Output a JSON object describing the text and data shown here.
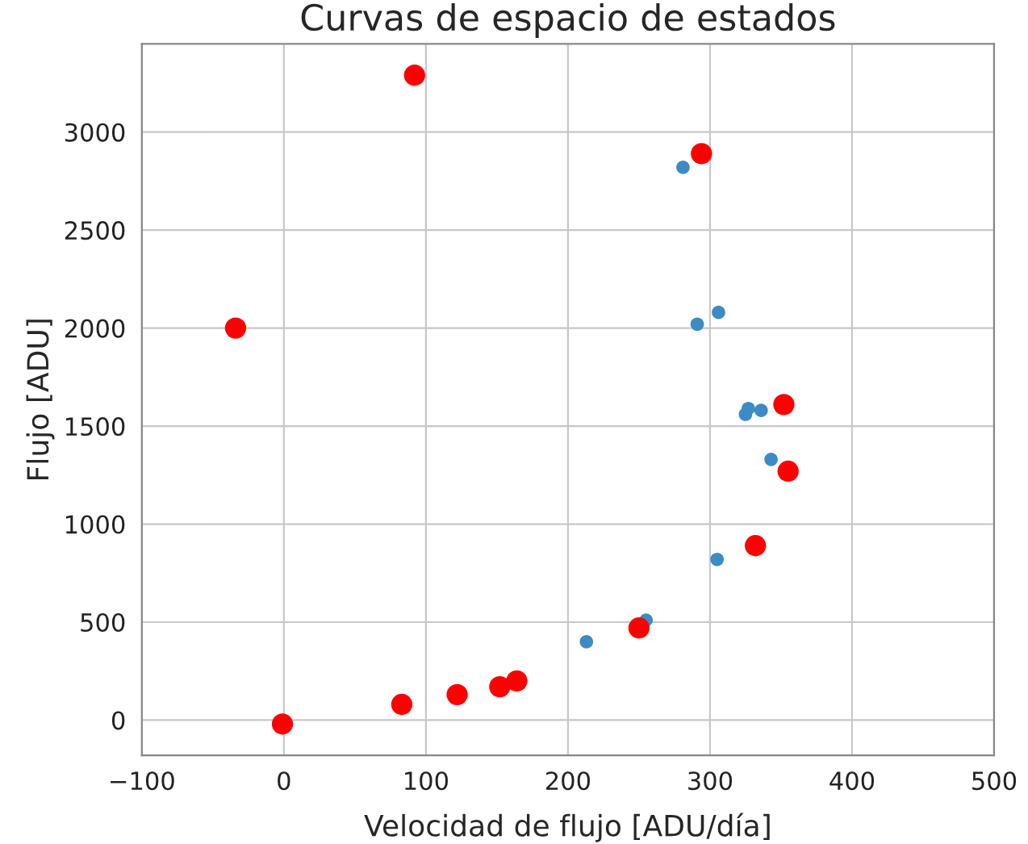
{
  "chart_data": {
    "type": "scatter",
    "title": "Curvas de espacio de estados",
    "xlabel": "Velocidad de flujo [ADU/día]",
    "ylabel": "Flujo [ADU]",
    "series": [
      {
        "color": "#3d8bc4",
        "x": [
          281,
          291,
          306,
          327,
          325,
          336,
          343,
          305,
          255,
          213
        ],
        "values": [
          2820,
          2020,
          2080,
          1590,
          1560,
          1580,
          1330,
          820,
          510,
          400
        ]
      },
      {
        "color": "#ff0000",
        "x": [
          92,
          294,
          -34,
          352,
          355,
          332,
          250,
          164,
          152,
          122,
          83,
          -1
        ],
        "values": [
          3290,
          2890,
          2000,
          1610,
          1270,
          890,
          470,
          200,
          170,
          130,
          80,
          -20
        ]
      }
    ],
    "xlim": [
      -100,
      500
    ],
    "xticks": [
      -100,
      0,
      100,
      200,
      300,
      400,
      500
    ],
    "ylim": [
      -180,
      3450
    ],
    "yticks": [
      0,
      500,
      1000,
      1500,
      2000,
      2500,
      3000
    ],
    "grid": true,
    "marker": "circle"
  }
}
